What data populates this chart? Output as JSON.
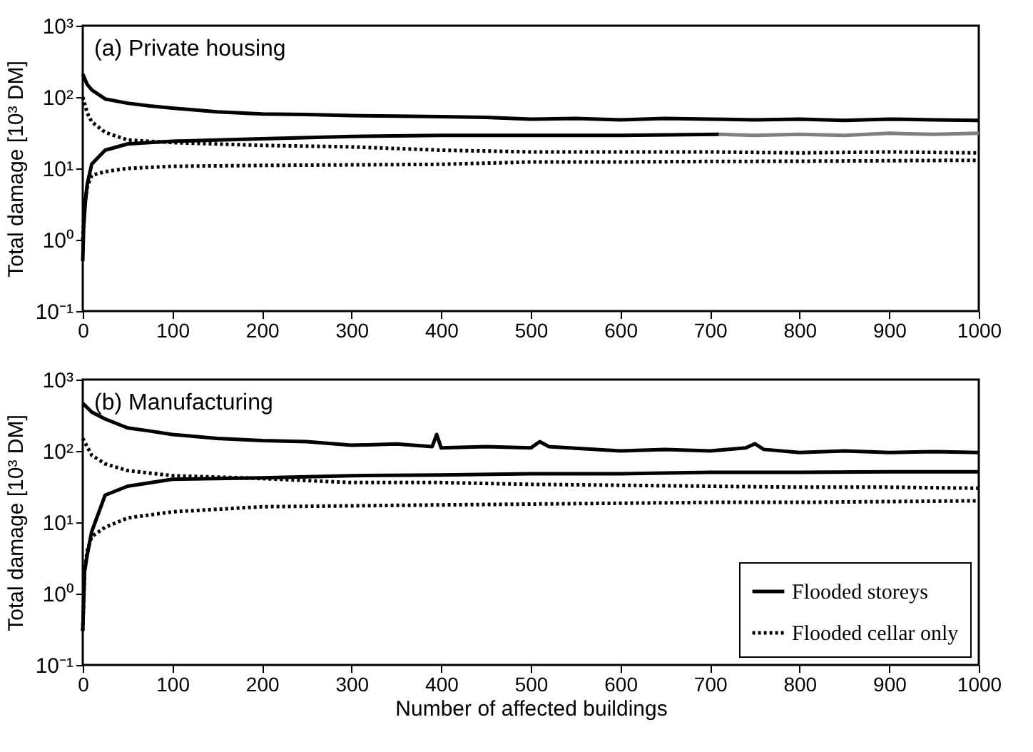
{
  "chart_data": [
    {
      "type": "line",
      "title": "(a) Private housing",
      "ylabel": "Total damage [10³ DM]",
      "log": "y",
      "legend": false,
      "grid": false,
      "marker": "none",
      "xlim": [
        0,
        1000
      ],
      "xticks": [
        0,
        100,
        200,
        300,
        400,
        500,
        600,
        700,
        800,
        900,
        1000
      ],
      "ylim": [
        0.1,
        1000
      ],
      "yticks": [
        {
          "value": 0.1,
          "label": "10⁻¹"
        },
        {
          "value": 1,
          "label": "10⁰"
        },
        {
          "value": 10,
          "label": "10¹"
        },
        {
          "value": 100,
          "label": "10²"
        },
        {
          "value": 1000,
          "label": "10³"
        }
      ],
      "series": [
        {
          "color": "#000000",
          "line_style": "solid",
          "x": [
            0,
            5,
            10,
            25,
            50,
            75,
            100,
            150,
            200,
            250,
            300,
            350,
            400,
            450,
            500,
            550,
            600,
            650,
            700,
            750,
            800,
            850,
            900,
            950,
            1000
          ],
          "values": [
            210,
            150,
            126,
            94,
            82,
            75,
            70,
            62,
            58,
            57,
            55,
            54,
            53,
            52,
            49,
            50,
            48,
            50,
            49,
            48,
            49,
            47,
            49,
            48,
            47
          ]
        },
        {
          "color": "#000000",
          "line_style": "solid",
          "x": [
            0,
            1,
            3,
            5,
            10,
            25,
            50,
            75,
            100,
            150,
            200,
            300,
            400,
            500,
            600,
            710
          ],
          "values": [
            0.5,
            1.5,
            3.5,
            6,
            11.5,
            18,
            22,
            23,
            24,
            25,
            26,
            28,
            29,
            29,
            29,
            30
          ]
        },
        {
          "color": "#808080",
          "line_style": "solid",
          "x": [
            710,
            750,
            800,
            850,
            900,
            950,
            1000
          ],
          "values": [
            30,
            29,
            30,
            29,
            31,
            30,
            31
          ]
        },
        {
          "color": "#000000",
          "line_style": "dotted",
          "x": [
            0,
            5,
            10,
            25,
            50,
            100,
            200,
            300,
            400,
            500,
            600,
            700,
            800,
            900,
            1000
          ],
          "values": [
            100,
            60,
            45,
            32,
            25,
            23,
            21,
            20,
            18,
            17,
            17,
            17,
            16.5,
            17,
            16.5
          ]
        },
        {
          "color": "#000000",
          "line_style": "dotted",
          "x": [
            0,
            2,
            5,
            10,
            25,
            50,
            100,
            200,
            300,
            400,
            500,
            600,
            700,
            800,
            900,
            1000
          ],
          "values": [
            1,
            3,
            5.5,
            8,
            9,
            10,
            10.7,
            11,
            11.2,
            11.4,
            12.3,
            12.3,
            12.5,
            12.6,
            12.8,
            13
          ]
        }
      ]
    },
    {
      "type": "line",
      "title": "(b) Manufacturing",
      "ylabel": "Total damage [10³ DM]",
      "xlabel": "Number of  affected buildings",
      "log": "y",
      "legend": "bottom right",
      "grid": false,
      "marker": "none",
      "xlim": [
        0,
        1000
      ],
      "xticks": [
        0,
        100,
        200,
        300,
        400,
        500,
        600,
        700,
        800,
        900,
        1000
      ],
      "ylim": [
        0.1,
        1000
      ],
      "yticks": [
        {
          "value": 0.1,
          "label": "10⁻¹"
        },
        {
          "value": 1,
          "label": "10⁰"
        },
        {
          "value": 10,
          "label": "10¹"
        },
        {
          "value": 100,
          "label": "10²"
        },
        {
          "value": 1000,
          "label": "10³"
        }
      ],
      "series": [
        {
          "name": "Flooded storeys",
          "color": "#000000",
          "line_style": "solid",
          "x": [
            0,
            10,
            25,
            50,
            75,
            100,
            150,
            200,
            250,
            300,
            350,
            390,
            395,
            400,
            450,
            500,
            510,
            520,
            600,
            650,
            700,
            740,
            750,
            760,
            800,
            850,
            900,
            950,
            1000
          ],
          "values": [
            466,
            350,
            280,
            210,
            190,
            170,
            150,
            140,
            135,
            120,
            125,
            115,
            170,
            110,
            115,
            110,
            135,
            115,
            100,
            105,
            100,
            110,
            126,
            105,
            95,
            100,
            95,
            98,
            95
          ]
        },
        {
          "color": "#000000",
          "line_style": "solid",
          "x": [
            0,
            2,
            5,
            10,
            25,
            50,
            100,
            200,
            300,
            400,
            500,
            600,
            700,
            800,
            900,
            1000
          ],
          "values": [
            0.3,
            2,
            3.5,
            7.4,
            24,
            32,
            40,
            42,
            45,
            46,
            48,
            48,
            50,
            50,
            51,
            51
          ]
        },
        {
          "name": "Flooded cellar only",
          "color": "#000000",
          "line_style": "dotted",
          "x": [
            0,
            10,
            25,
            50,
            100,
            200,
            300,
            400,
            500,
            600,
            700,
            800,
            900,
            1000
          ],
          "values": [
            150,
            87,
            66,
            53,
            45,
            41,
            36,
            36,
            34,
            33,
            32,
            31,
            31,
            30
          ]
        },
        {
          "color": "#000000",
          "line_style": "dotted",
          "x": [
            0,
            2,
            5,
            10,
            25,
            50,
            100,
            200,
            300,
            400,
            500,
            600,
            700,
            800,
            900,
            1000
          ],
          "values": [
            0.3,
            2,
            4,
            6.3,
            8.5,
            11.5,
            14,
            16.5,
            17,
            17.5,
            18,
            18.5,
            19,
            19,
            19.5,
            20
          ]
        }
      ]
    }
  ]
}
